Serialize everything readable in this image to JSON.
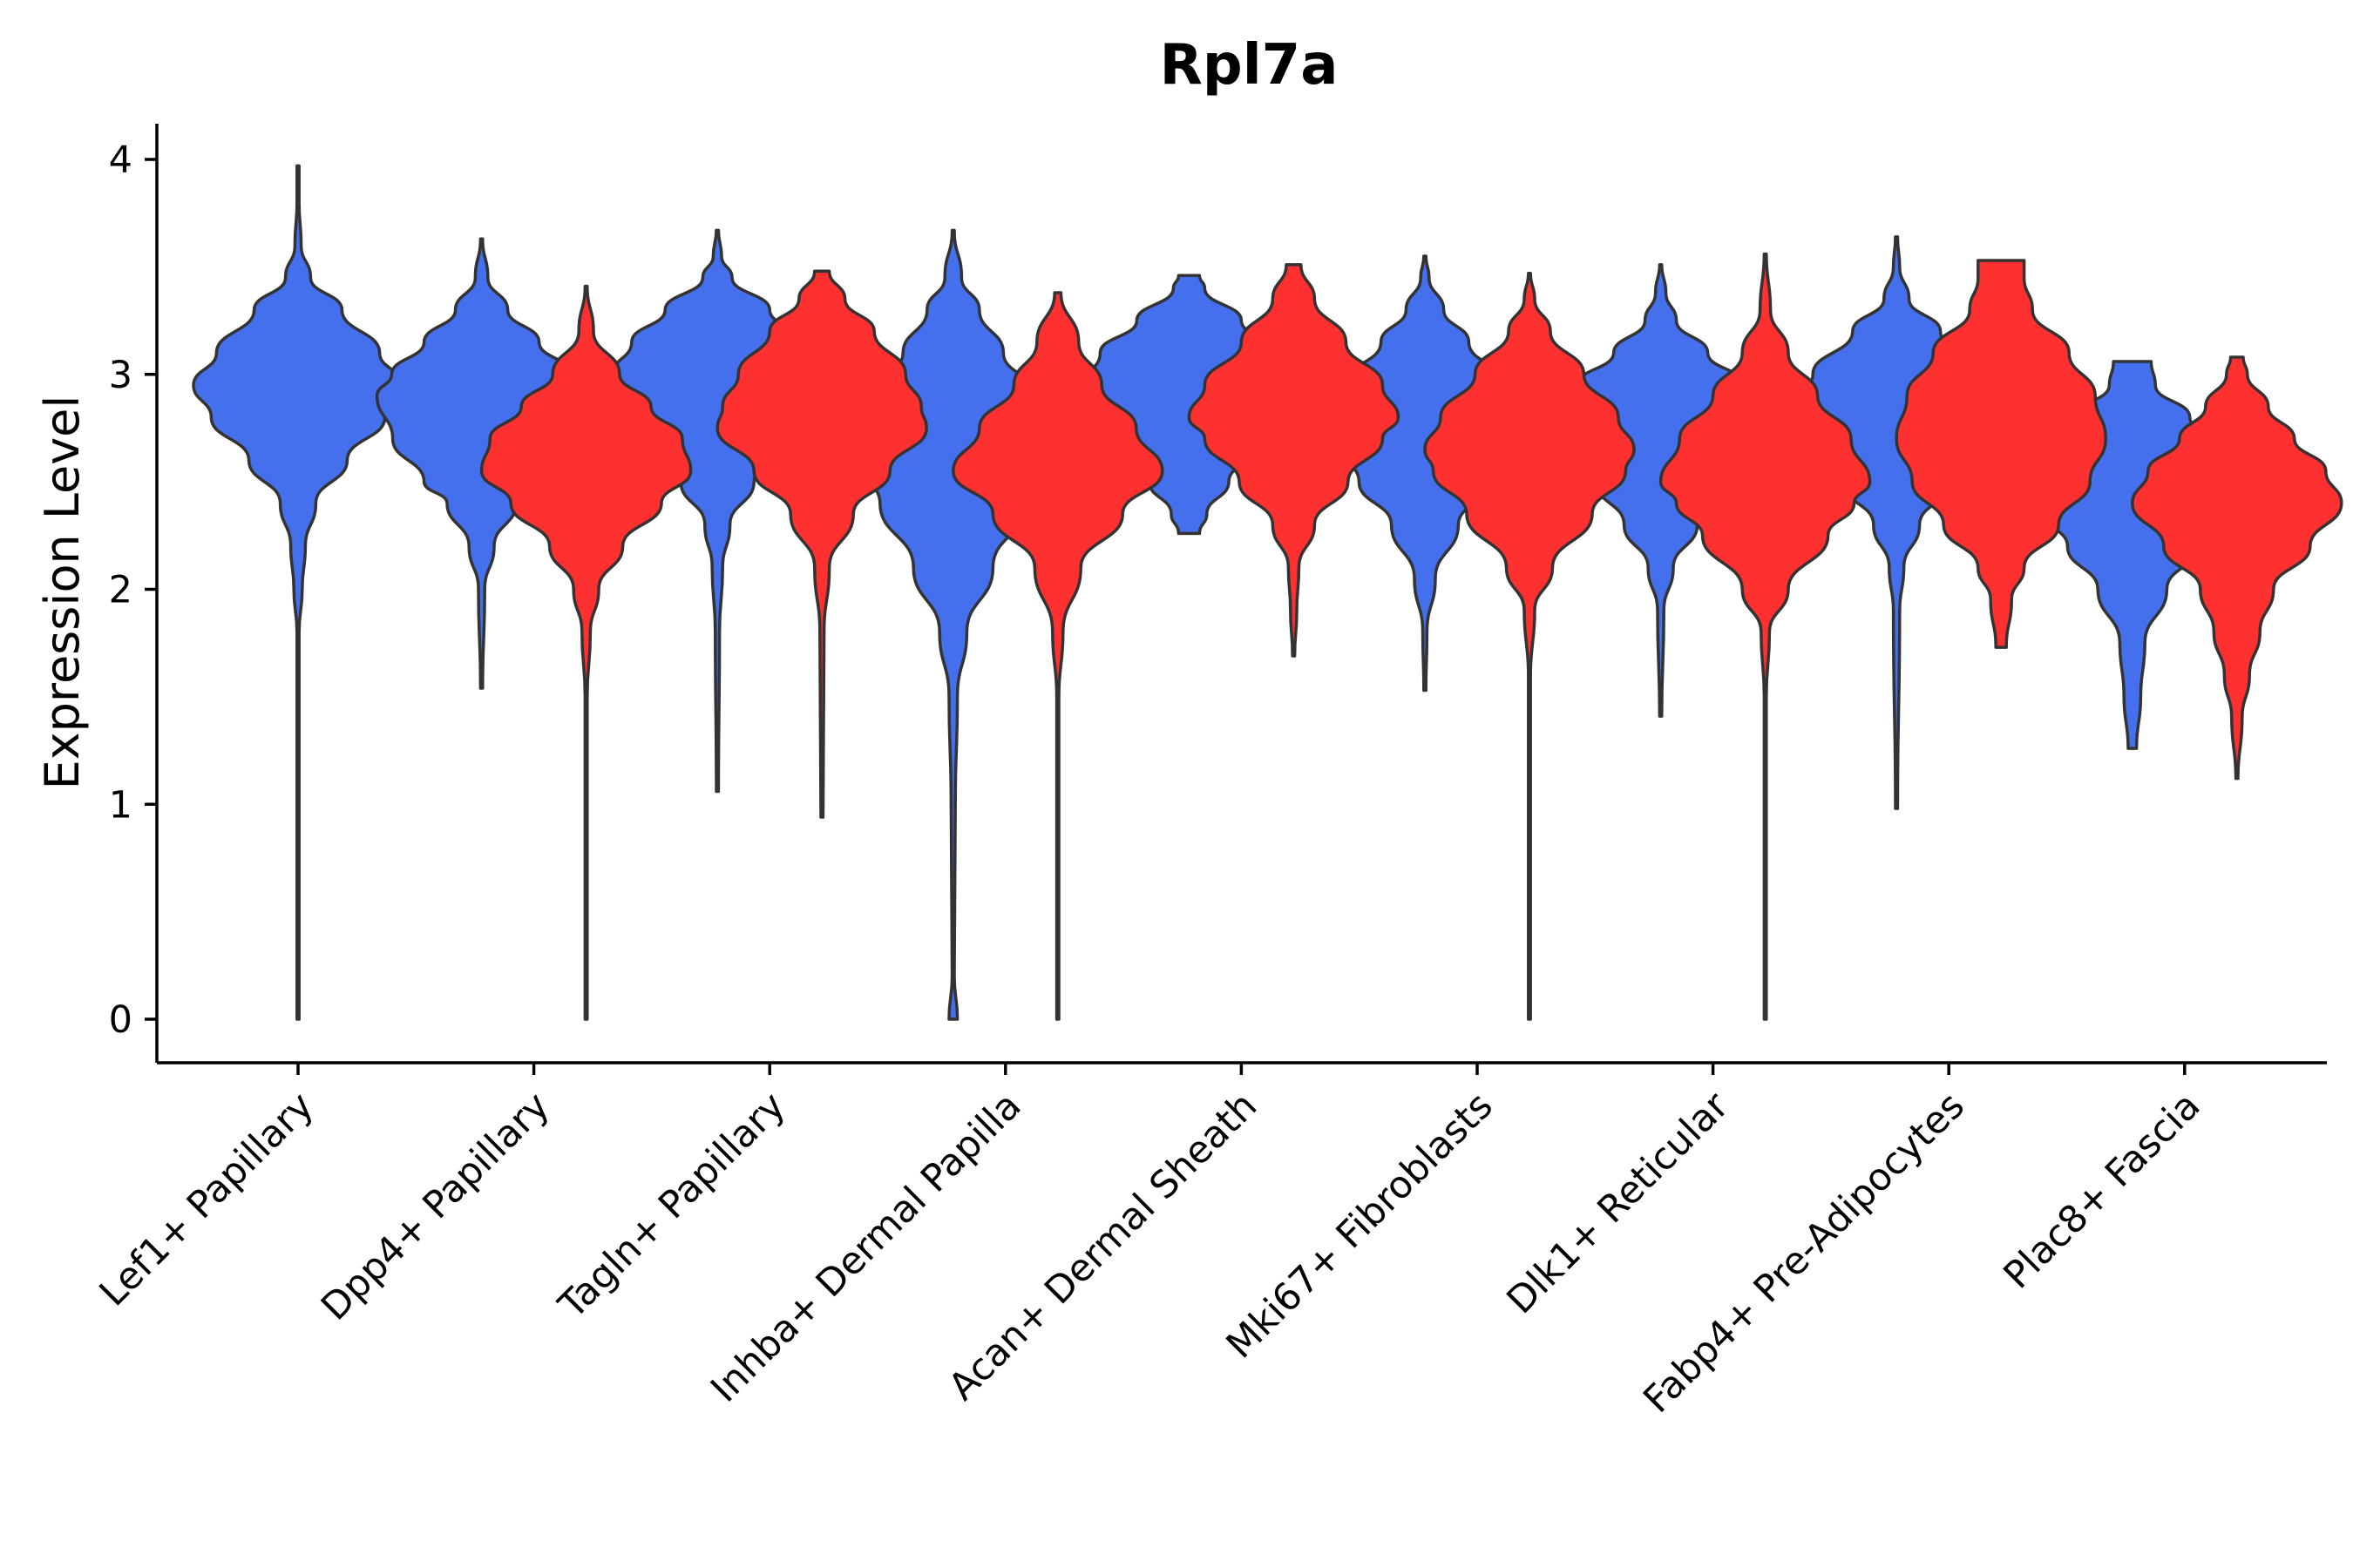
{
  "chart_data": {
    "type": "violin",
    "title": "Rpl7a",
    "xlabel": "",
    "ylabel": "Expression Level",
    "ylim": [
      -0.2,
      4.16
    ],
    "yticks": [
      0,
      1,
      2,
      3,
      4
    ],
    "grid": false,
    "legend": "none",
    "colors": {
      "group1": "#4470ee",
      "group2": "#ff3030",
      "outline": "#333333"
    },
    "categories": [
      "Lef1+ Papillary",
      "Dpp4+ Papillary",
      "Tagln+ Papillary",
      "Inhba+ Dermal Papilla",
      "Acan+ Dermal Sheath",
      "Mki67+ Fibroblasts",
      "Dlk1+ Reticular",
      "Fabp4+ Pre-Adipocytes",
      "Plac8+ Fascia"
    ],
    "series": [
      {
        "name": "group1",
        "color": "#4470ee",
        "violins": [
          {
            "category": "Lef1+ Papillary",
            "min": 0.0,
            "max": 3.97,
            "peak": 2.95,
            "profile": [
              [
                0.0,
                0.01
              ],
              [
                1.8,
                0.01
              ],
              [
                2.0,
                0.04
              ],
              [
                2.2,
                0.07
              ],
              [
                2.4,
                0.17
              ],
              [
                2.6,
                0.47
              ],
              [
                2.8,
                0.83
              ],
              [
                2.95,
                1.0
              ],
              [
                3.1,
                0.78
              ],
              [
                3.3,
                0.42
              ],
              [
                3.45,
                0.12
              ],
              [
                3.6,
                0.03
              ],
              [
                3.8,
                0.01
              ],
              [
                3.97,
                0.01
              ]
            ]
          },
          {
            "category": "Dpp4+ Papillary",
            "min": 1.54,
            "max": 3.63,
            "peak": 2.9,
            "profile": [
              [
                1.54,
                0.01
              ],
              [
                2.0,
                0.03
              ],
              [
                2.2,
                0.12
              ],
              [
                2.4,
                0.33
              ],
              [
                2.5,
                0.55
              ],
              [
                2.7,
                0.85
              ],
              [
                2.9,
                1.0
              ],
              [
                3.0,
                0.86
              ],
              [
                3.15,
                0.55
              ],
              [
                3.3,
                0.25
              ],
              [
                3.45,
                0.06
              ],
              [
                3.63,
                0.01
              ]
            ]
          },
          {
            "category": "Tagln+ Papillary",
            "min": 1.06,
            "max": 3.67,
            "peak": 2.97,
            "profile": [
              [
                1.06,
                0.01
              ],
              [
                1.8,
                0.02
              ],
              [
                2.1,
                0.05
              ],
              [
                2.3,
                0.12
              ],
              [
                2.5,
                0.35
              ],
              [
                2.7,
                0.68
              ],
              [
                2.9,
                0.93
              ],
              [
                3.0,
                1.0
              ],
              [
                3.15,
                0.82
              ],
              [
                3.3,
                0.5
              ],
              [
                3.45,
                0.14
              ],
              [
                3.55,
                0.04
              ],
              [
                3.67,
                0.01
              ]
            ]
          },
          {
            "category": "Inhba+ Dermal Papilla",
            "min": 0.0,
            "max": 3.67,
            "peak": 2.7,
            "profile": [
              [
                0.0,
                0.04
              ],
              [
                0.2,
                0.01
              ],
              [
                1.0,
                0.02
              ],
              [
                1.5,
                0.04
              ],
              [
                1.8,
                0.13
              ],
              [
                2.1,
                0.38
              ],
              [
                2.4,
                0.7
              ],
              [
                2.6,
                0.92
              ],
              [
                2.75,
                1.0
              ],
              [
                2.9,
                0.8
              ],
              [
                3.1,
                0.48
              ],
              [
                3.3,
                0.25
              ],
              [
                3.45,
                0.08
              ],
              [
                3.67,
                0.01
              ]
            ]
          },
          {
            "category": "Acan+ Dermal Sheath",
            "min": 2.26,
            "max": 3.46,
            "peak": 2.95,
            "profile": [
              [
                2.26,
                0.1
              ],
              [
                2.35,
                0.17
              ],
              [
                2.5,
                0.38
              ],
              [
                2.65,
                0.6
              ],
              [
                2.8,
                0.82
              ],
              [
                2.95,
                1.0
              ],
              [
                3.1,
                0.85
              ],
              [
                3.25,
                0.5
              ],
              [
                3.4,
                0.15
              ],
              [
                3.46,
                0.1
              ]
            ]
          },
          {
            "category": "Mki67+ Fibroblasts",
            "min": 1.53,
            "max": 3.55,
            "peak": 2.75,
            "profile": [
              [
                1.53,
                0.01
              ],
              [
                1.8,
                0.02
              ],
              [
                2.05,
                0.1
              ],
              [
                2.3,
                0.32
              ],
              [
                2.5,
                0.63
              ],
              [
                2.7,
                0.9
              ],
              [
                2.8,
                1.0
              ],
              [
                2.95,
                0.78
              ],
              [
                3.15,
                0.42
              ],
              [
                3.3,
                0.18
              ],
              [
                3.45,
                0.04
              ],
              [
                3.55,
                0.01
              ]
            ]
          },
          {
            "category": "Dlk1+ Reticular",
            "min": 1.41,
            "max": 3.51,
            "peak": 2.8,
            "profile": [
              [
                1.41,
                0.01
              ],
              [
                1.9,
                0.03
              ],
              [
                2.1,
                0.12
              ],
              [
                2.3,
                0.35
              ],
              [
                2.5,
                0.62
              ],
              [
                2.7,
                0.9
              ],
              [
                2.8,
                1.0
              ],
              [
                2.95,
                0.8
              ],
              [
                3.1,
                0.45
              ],
              [
                3.25,
                0.15
              ],
              [
                3.38,
                0.05
              ],
              [
                3.51,
                0.01
              ]
            ]
          },
          {
            "category": "Fabp4+ Pre-Adipocytes",
            "min": 0.98,
            "max": 3.64,
            "peak": 2.85,
            "profile": [
              [
                0.98,
                0.01
              ],
              [
                1.9,
                0.03
              ],
              [
                2.1,
                0.07
              ],
              [
                2.3,
                0.22
              ],
              [
                2.5,
                0.52
              ],
              [
                2.7,
                0.85
              ],
              [
                2.85,
                1.0
              ],
              [
                3.0,
                0.8
              ],
              [
                3.2,
                0.42
              ],
              [
                3.35,
                0.12
              ],
              [
                3.5,
                0.03
              ],
              [
                3.64,
                0.01
              ]
            ]
          },
          {
            "category": "Plac8+ Fascia",
            "min": 1.26,
            "max": 3.06,
            "peak": 2.45,
            "profile": [
              [
                1.26,
                0.04
              ],
              [
                1.5,
                0.08
              ],
              [
                1.75,
                0.12
              ],
              [
                2.0,
                0.33
              ],
              [
                2.2,
                0.62
              ],
              [
                2.35,
                0.82
              ],
              [
                2.5,
                1.0
              ],
              [
                2.65,
                0.85
              ],
              [
                2.8,
                0.55
              ],
              [
                2.95,
                0.22
              ],
              [
                3.06,
                0.18
              ]
            ]
          }
        ]
      },
      {
        "name": "group2",
        "color": "#ff3030",
        "violins": [
          {
            "category": "Dpp4+ Papillary",
            "min": 0.0,
            "max": 3.41,
            "peak": 2.55,
            "profile": [
              [
                0.0,
                0.01
              ],
              [
                1.5,
                0.01
              ],
              [
                1.8,
                0.04
              ],
              [
                2.0,
                0.12
              ],
              [
                2.2,
                0.35
              ],
              [
                2.4,
                0.72
              ],
              [
                2.55,
                1.0
              ],
              [
                2.7,
                0.92
              ],
              [
                2.85,
                0.62
              ],
              [
                3.0,
                0.32
              ],
              [
                3.2,
                0.07
              ],
              [
                3.41,
                0.01
              ]
            ]
          },
          {
            "category": "Tagln+ Papillary",
            "min": 0.94,
            "max": 3.48,
            "peak": 2.75,
            "profile": [
              [
                0.94,
                0.01
              ],
              [
                1.8,
                0.02
              ],
              [
                2.1,
                0.07
              ],
              [
                2.35,
                0.3
              ],
              [
                2.55,
                0.65
              ],
              [
                2.75,
                1.0
              ],
              [
                2.85,
                0.95
              ],
              [
                3.0,
                0.8
              ],
              [
                3.2,
                0.5
              ],
              [
                3.35,
                0.22
              ],
              [
                3.48,
                0.07
              ]
            ]
          },
          {
            "category": "Inhba+ Dermal Papilla",
            "min": 0.0,
            "max": 3.38,
            "peak": 2.55,
            "profile": [
              [
                0.0,
                0.01
              ],
              [
                1.5,
                0.01
              ],
              [
                1.8,
                0.05
              ],
              [
                2.1,
                0.22
              ],
              [
                2.35,
                0.62
              ],
              [
                2.55,
                1.0
              ],
              [
                2.75,
                0.75
              ],
              [
                2.95,
                0.42
              ],
              [
                3.15,
                0.2
              ],
              [
                3.38,
                0.03
              ]
            ]
          },
          {
            "category": "Acan+ Dermal Sheath",
            "min": 1.69,
            "max": 3.51,
            "peak": 2.8,
            "profile": [
              [
                1.69,
                0.01
              ],
              [
                1.9,
                0.03
              ],
              [
                2.1,
                0.05
              ],
              [
                2.3,
                0.2
              ],
              [
                2.5,
                0.52
              ],
              [
                2.7,
                0.85
              ],
              [
                2.8,
                1.0
              ],
              [
                2.95,
                0.85
              ],
              [
                3.15,
                0.5
              ],
              [
                3.35,
                0.2
              ],
              [
                3.51,
                0.07
              ]
            ]
          },
          {
            "category": "Mki67+ Fibroblasts",
            "min": 0.0,
            "max": 3.47,
            "peak": 2.65,
            "profile": [
              [
                0.0,
                0.01
              ],
              [
                1.6,
                0.01
              ],
              [
                1.9,
                0.05
              ],
              [
                2.1,
                0.22
              ],
              [
                2.35,
                0.6
              ],
              [
                2.55,
                0.92
              ],
              [
                2.65,
                1.0
              ],
              [
                2.8,
                0.85
              ],
              [
                3.0,
                0.52
              ],
              [
                3.2,
                0.2
              ],
              [
                3.35,
                0.05
              ],
              [
                3.47,
                0.01
              ]
            ]
          },
          {
            "category": "Dlk1+ Reticular",
            "min": 0.0,
            "max": 3.56,
            "peak": 2.5,
            "profile": [
              [
                0.0,
                0.01
              ],
              [
                1.5,
                0.01
              ],
              [
                1.8,
                0.04
              ],
              [
                2.0,
                0.22
              ],
              [
                2.25,
                0.6
              ],
              [
                2.4,
                0.85
              ],
              [
                2.5,
                1.0
              ],
              [
                2.7,
                0.82
              ],
              [
                2.9,
                0.5
              ],
              [
                3.1,
                0.22
              ],
              [
                3.3,
                0.05
              ],
              [
                3.56,
                0.01
              ]
            ]
          },
          {
            "category": "Fabp4+ Pre-Adipocytes",
            "min": 1.73,
            "max": 3.53,
            "peak": 2.75,
            "profile": [
              [
                1.73,
                0.05
              ],
              [
                1.95,
                0.1
              ],
              [
                2.1,
                0.22
              ],
              [
                2.3,
                0.55
              ],
              [
                2.5,
                0.85
              ],
              [
                2.7,
                1.0
              ],
              [
                2.9,
                0.9
              ],
              [
                3.1,
                0.65
              ],
              [
                3.3,
                0.3
              ],
              [
                3.45,
                0.22
              ],
              [
                3.53,
                0.22
              ]
            ]
          },
          {
            "category": "Plac8+ Fascia",
            "min": 1.12,
            "max": 3.08,
            "peak": 2.4,
            "profile": [
              [
                1.12,
                0.01
              ],
              [
                1.4,
                0.05
              ],
              [
                1.6,
                0.12
              ],
              [
                1.8,
                0.22
              ],
              [
                2.0,
                0.35
              ],
              [
                2.2,
                0.7
              ],
              [
                2.4,
                1.0
              ],
              [
                2.55,
                0.85
              ],
              [
                2.7,
                0.55
              ],
              [
                2.85,
                0.3
              ],
              [
                3.0,
                0.1
              ],
              [
                3.08,
                0.06
              ]
            ]
          }
        ]
      }
    ]
  }
}
